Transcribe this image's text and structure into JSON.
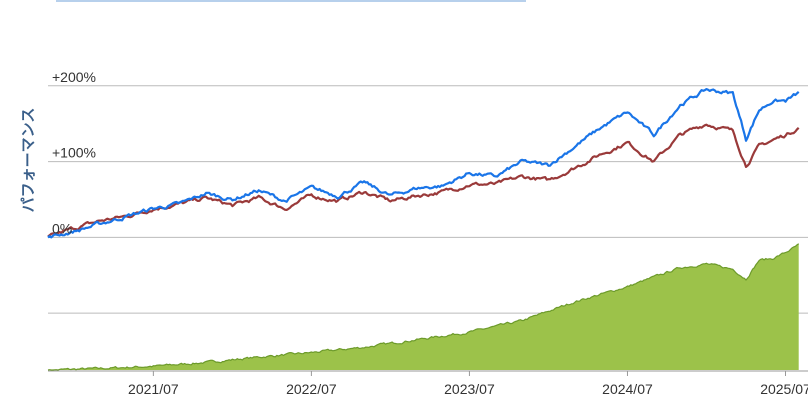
{
  "chart_data": {
    "type": "line",
    "ylabel": "パフォーマンス",
    "y_tick_labels": [
      "+200%",
      "+100%",
      "0%"
    ],
    "x_tick_labels": [
      "2021/07",
      "2022/07",
      "2023/07",
      "2024/07",
      "2025/07"
    ],
    "ylim_percent": [
      -175,
      300
    ],
    "date_range": [
      "2020-11",
      "2025-08"
    ],
    "grid": true,
    "legend": "none",
    "colors": {
      "blue": "#1a75e8",
      "red": "#9a3a3a",
      "area_fill": "#9cc24a",
      "area_line": "#6c9a2a",
      "grid": "#bbbbbb"
    },
    "series": [
      {
        "key": "blue",
        "x": [
          "2020-11",
          "2021-01",
          "2021-03",
          "2021-05",
          "2021-07",
          "2021-09",
          "2021-11",
          "2022-01",
          "2022-03",
          "2022-05",
          "2022-07",
          "2022-09",
          "2022-11",
          "2023-01",
          "2023-03",
          "2023-05",
          "2023-07",
          "2023-09",
          "2023-11",
          "2024-01",
          "2024-03",
          "2024-05",
          "2024-07",
          "2024-09",
          "2024-11",
          "2025-01",
          "2025-03",
          "2025-04",
          "2025-05",
          "2025-06",
          "2025-07",
          "2025-08"
        ],
        "y": [
          0,
          8,
          18,
          28,
          38,
          44,
          58,
          50,
          62,
          48,
          65,
          55,
          72,
          55,
          65,
          68,
          85,
          80,
          100,
          95,
          120,
          145,
          165,
          135,
          175,
          195,
          190,
          130,
          168,
          180,
          180,
          190
        ]
      },
      {
        "key": "red",
        "x": [
          "2020-11",
          "2021-01",
          "2021-03",
          "2021-05",
          "2021-07",
          "2021-09",
          "2021-11",
          "2022-01",
          "2022-03",
          "2022-05",
          "2022-07",
          "2022-09",
          "2022-11",
          "2023-01",
          "2023-03",
          "2023-05",
          "2023-07",
          "2023-09",
          "2023-11",
          "2024-01",
          "2024-03",
          "2024-05",
          "2024-07",
          "2024-09",
          "2024-11",
          "2025-01",
          "2025-03",
          "2025-04",
          "2025-05",
          "2025-06",
          "2025-07",
          "2025-08"
        ],
        "y": [
          0,
          12,
          22,
          28,
          38,
          44,
          52,
          42,
          52,
          38,
          55,
          48,
          60,
          48,
          55,
          60,
          70,
          70,
          80,
          75,
          92,
          110,
          125,
          100,
          135,
          150,
          140,
          95,
          120,
          128,
          135,
          145
        ]
      },
      {
        "key": "area",
        "x": [
          "2020-11",
          "2021-03",
          "2021-07",
          "2021-11",
          "2022-03",
          "2022-07",
          "2022-11",
          "2023-03",
          "2023-07",
          "2023-11",
          "2024-03",
          "2024-07",
          "2024-11",
          "2025-01",
          "2025-03",
          "2025-04",
          "2025-05",
          "2025-06",
          "2025-07",
          "2025-08"
        ],
        "y": [
          -175,
          -173,
          -170,
          -165,
          -158,
          -152,
          -145,
          -135,
          -125,
          -110,
          -85,
          -65,
          -40,
          -35,
          -42,
          -55,
          -30,
          -28,
          -20,
          -10
        ]
      }
    ]
  }
}
